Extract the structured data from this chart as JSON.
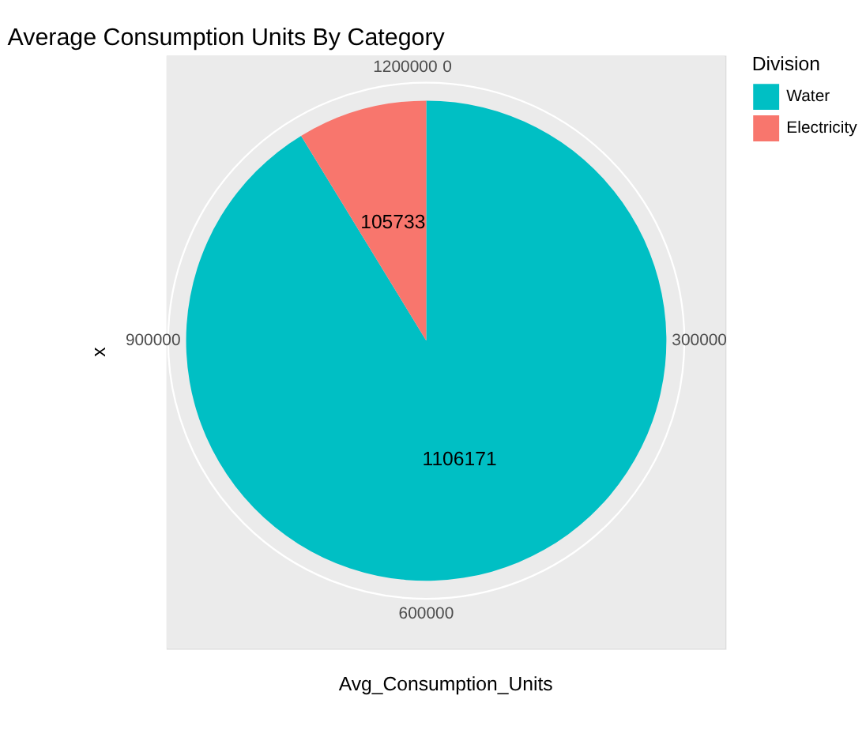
{
  "chart_data": {
    "type": "pie",
    "title": "Average Consumption Units By Category",
    "xlabel": "Avg_Consumption_Units",
    "ylabel": "x",
    "legend_title": "Division",
    "categories": [
      "Water",
      "Electricity"
    ],
    "values": [
      1106171,
      105733
    ],
    "colors": [
      "#00bfc4",
      "#f8766d"
    ],
    "annotations": [
      "0",
      "300000",
      "600000",
      "900000",
      "1200000"
    ],
    "data_labels": true,
    "grid": true,
    "legend": "right"
  }
}
